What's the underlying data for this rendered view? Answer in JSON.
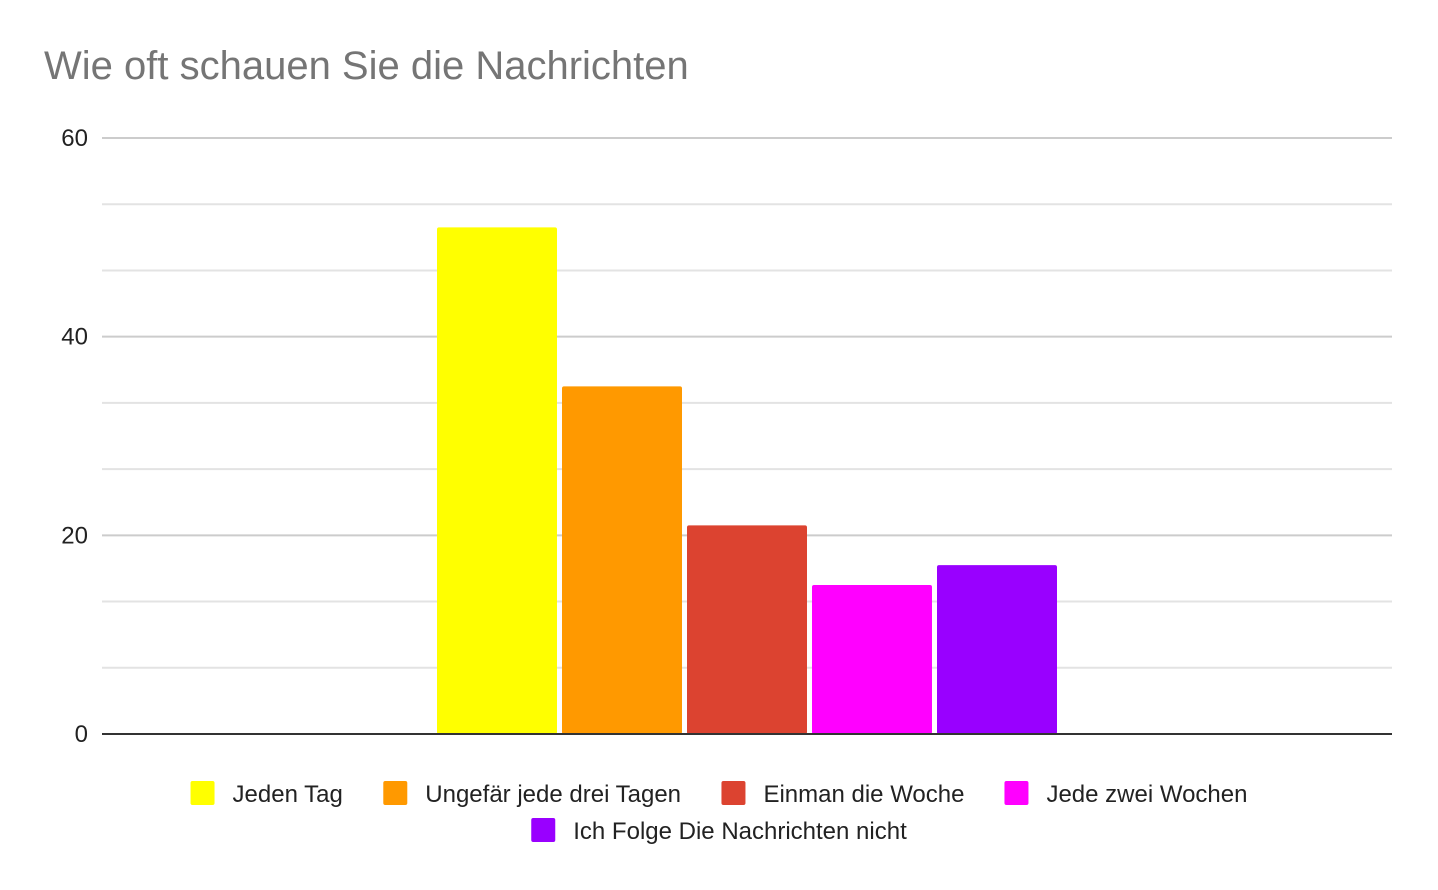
{
  "chart_data": {
    "type": "bar",
    "title": "Wie oft schauen Sie die Nachrichten",
    "xlabel": "",
    "ylabel": "",
    "ylim": [
      0,
      60
    ],
    "yticks": [
      0,
      20,
      40,
      60
    ],
    "minor_grid_step": 6.6667,
    "grid": true,
    "legend_position": "bottom",
    "series": [
      {
        "name": "Jeden Tag",
        "values": [
          51
        ],
        "color": "#ffff00"
      },
      {
        "name": "Ungefär jede drei Tagen",
        "values": [
          35
        ],
        "color": "#ff9900"
      },
      {
        "name": "Einman die Woche",
        "values": [
          21
        ],
        "color": "#dc4330"
      },
      {
        "name": "Jede zwei Wochen",
        "values": [
          15
        ],
        "color": "#ff00ff"
      },
      {
        "name": "Ich Folge Die Nachrichten nicht",
        "values": [
          17
        ],
        "color": "#9900ff"
      }
    ]
  }
}
